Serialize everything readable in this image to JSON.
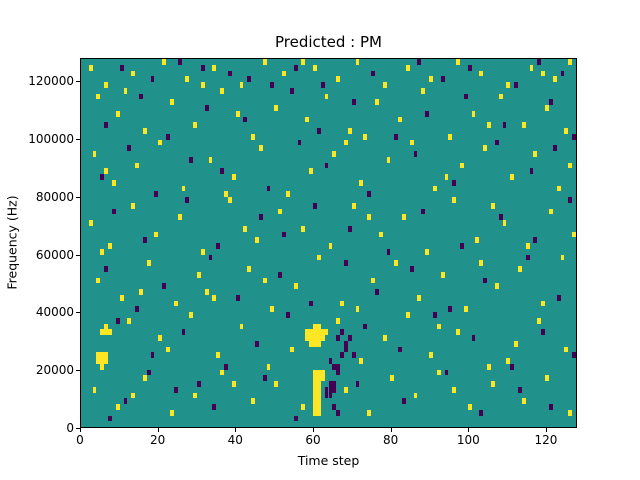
{
  "chart_data": {
    "type": "heatmap",
    "title": "Predicted : PM",
    "xlabel": "Time step",
    "ylabel": "Frequency (Hz)",
    "xlim": [
      0,
      128
    ],
    "ylim": [
      0,
      128000
    ],
    "x_ticks": [
      0,
      20,
      40,
      60,
      80,
      100,
      120
    ],
    "y_ticks": [
      0,
      20000,
      40000,
      60000,
      80000,
      100000,
      120000
    ],
    "grid": false,
    "legend": "none",
    "x_bins": 128,
    "y_bins": 64,
    "cell_height_hz": 2000,
    "colors": {
      "background_value": "#21918c",
      "high_value": "#fde725",
      "low_value": "#440154",
      "figure_background": "#ffffff",
      "axis_color": "#000000"
    },
    "yellow_cells": [
      [
        2,
        62
      ],
      [
        6,
        59
      ],
      [
        13,
        61
      ],
      [
        21,
        63
      ],
      [
        27,
        60
      ],
      [
        34,
        62
      ],
      [
        41,
        59
      ],
      [
        47,
        63
      ],
      [
        52,
        61
      ],
      [
        57,
        63
      ],
      [
        60,
        62
      ],
      [
        66,
        60
      ],
      [
        71,
        63
      ],
      [
        78,
        59
      ],
      [
        84,
        62
      ],
      [
        90,
        60
      ],
      [
        97,
        63
      ],
      [
        103,
        61
      ],
      [
        110,
        59
      ],
      [
        116,
        62
      ],
      [
        119,
        61
      ],
      [
        122,
        60
      ],
      [
        126,
        63
      ],
      [
        31,
        59
      ],
      [
        4,
        57
      ],
      [
        9,
        54
      ],
      [
        11,
        58
      ],
      [
        16,
        51
      ],
      [
        23,
        56
      ],
      [
        29,
        52
      ],
      [
        36,
        58
      ],
      [
        40,
        54
      ],
      [
        44,
        50
      ],
      [
        50,
        55
      ],
      [
        58,
        53
      ],
      [
        63,
        57
      ],
      [
        69,
        51
      ],
      [
        73,
        50
      ],
      [
        76,
        56
      ],
      [
        82,
        53
      ],
      [
        88,
        58
      ],
      [
        95,
        50
      ],
      [
        101,
        54
      ],
      [
        105,
        52
      ],
      [
        108,
        57
      ],
      [
        114,
        52
      ],
      [
        120,
        55
      ],
      [
        125,
        51
      ],
      [
        3,
        47
      ],
      [
        6,
        44
      ],
      [
        8,
        42
      ],
      [
        14,
        45
      ],
      [
        20,
        49
      ],
      [
        26,
        41
      ],
      [
        33,
        46
      ],
      [
        37,
        40
      ],
      [
        39,
        43
      ],
      [
        46,
        48
      ],
      [
        53,
        40
      ],
      [
        59,
        44
      ],
      [
        65,
        47
      ],
      [
        68,
        49
      ],
      [
        72,
        42
      ],
      [
        79,
        46
      ],
      [
        85,
        49
      ],
      [
        91,
        41
      ],
      [
        94,
        43
      ],
      [
        98,
        45
      ],
      [
        104,
        48
      ],
      [
        111,
        43
      ],
      [
        117,
        47
      ],
      [
        123,
        41
      ],
      [
        126,
        45
      ],
      [
        2,
        35
      ],
      [
        5,
        30
      ],
      [
        7,
        31
      ],
      [
        13,
        38
      ],
      [
        19,
        33
      ],
      [
        25,
        36
      ],
      [
        31,
        30
      ],
      [
        38,
        39
      ],
      [
        42,
        34
      ],
      [
        45,
        32
      ],
      [
        51,
        37
      ],
      [
        57,
        34
      ],
      [
        64,
        31
      ],
      [
        70,
        38
      ],
      [
        74,
        36
      ],
      [
        77,
        33
      ],
      [
        83,
        36
      ],
      [
        89,
        30
      ],
      [
        96,
        39
      ],
      [
        102,
        32
      ],
      [
        106,
        38
      ],
      [
        109,
        35
      ],
      [
        115,
        31
      ],
      [
        121,
        37
      ],
      [
        127,
        33
      ],
      [
        4,
        25
      ],
      [
        10,
        22
      ],
      [
        15,
        23
      ],
      [
        17,
        28
      ],
      [
        24,
        21
      ],
      [
        30,
        26
      ],
      [
        32,
        23
      ],
      [
        34,
        22
      ],
      [
        43,
        27
      ],
      [
        47,
        25
      ],
      [
        49,
        20
      ],
      [
        55,
        24
      ],
      [
        61,
        29
      ],
      [
        67,
        21
      ],
      [
        71,
        20
      ],
      [
        75,
        25
      ],
      [
        81,
        28
      ],
      [
        87,
        22
      ],
      [
        93,
        26
      ],
      [
        99,
        20
      ],
      [
        103,
        28
      ],
      [
        107,
        24
      ],
      [
        113,
        27
      ],
      [
        119,
        21
      ],
      [
        124,
        29
      ],
      [
        4,
        11
      ],
      [
        4,
        12
      ],
      [
        5,
        10
      ],
      [
        5,
        11
      ],
      [
        5,
        12
      ],
      [
        6,
        11
      ],
      [
        6,
        12
      ],
      [
        5,
        16
      ],
      [
        6,
        16
      ],
      [
        6,
        17
      ],
      [
        7,
        16
      ],
      [
        58,
        15
      ],
      [
        58,
        16
      ],
      [
        59,
        14
      ],
      [
        59,
        15
      ],
      [
        59,
        16
      ],
      [
        60,
        14
      ],
      [
        60,
        15
      ],
      [
        60,
        16
      ],
      [
        60,
        17
      ],
      [
        61,
        14
      ],
      [
        61,
        15
      ],
      [
        61,
        16
      ],
      [
        61,
        17
      ],
      [
        62,
        15
      ],
      [
        62,
        16
      ],
      [
        63,
        16
      ],
      [
        12,
        18
      ],
      [
        20,
        15
      ],
      [
        22,
        13
      ],
      [
        28,
        19
      ],
      [
        35,
        12
      ],
      [
        41,
        17
      ],
      [
        48,
        10
      ],
      [
        54,
        13
      ],
      [
        66,
        18
      ],
      [
        72,
        11
      ],
      [
        78,
        15
      ],
      [
        84,
        19
      ],
      [
        90,
        12
      ],
      [
        92,
        17
      ],
      [
        97,
        16
      ],
      [
        105,
        10
      ],
      [
        110,
        11
      ],
      [
        112,
        14
      ],
      [
        118,
        18
      ],
      [
        125,
        13
      ],
      [
        60,
        2
      ],
      [
        60,
        3
      ],
      [
        60,
        4
      ],
      [
        60,
        5
      ],
      [
        60,
        6
      ],
      [
        60,
        7
      ],
      [
        60,
        8
      ],
      [
        60,
        9
      ],
      [
        61,
        2
      ],
      [
        61,
        3
      ],
      [
        61,
        4
      ],
      [
        61,
        5
      ],
      [
        61,
        6
      ],
      [
        61,
        7
      ],
      [
        61,
        8
      ],
      [
        61,
        9
      ],
      [
        62,
        8
      ],
      [
        62,
        9
      ],
      [
        3,
        6
      ],
      [
        9,
        3
      ],
      [
        13,
        5
      ],
      [
        16,
        8
      ],
      [
        23,
        2
      ],
      [
        29,
        5
      ],
      [
        36,
        9
      ],
      [
        39,
        7
      ],
      [
        44,
        4
      ],
      [
        50,
        7
      ],
      [
        57,
        3
      ],
      [
        68,
        6
      ],
      [
        74,
        2
      ],
      [
        80,
        8
      ],
      [
        86,
        5
      ],
      [
        92,
        9
      ],
      [
        96,
        6
      ],
      [
        100,
        3
      ],
      [
        106,
        7
      ],
      [
        114,
        4
      ],
      [
        120,
        8
      ],
      [
        126,
        2
      ]
    ],
    "purple_cells": [
      [
        63,
        5
      ],
      [
        63,
        6
      ],
      [
        64,
        5
      ],
      [
        64,
        6
      ],
      [
        64,
        7
      ],
      [
        65,
        6
      ],
      [
        65,
        7
      ],
      [
        65,
        10
      ],
      [
        66,
        9
      ],
      [
        66,
        10
      ],
      [
        67,
        12
      ],
      [
        68,
        13
      ],
      [
        68,
        14
      ],
      [
        69,
        15
      ],
      [
        70,
        12
      ],
      [
        66,
        15
      ],
      [
        67,
        16
      ],
      [
        10,
        62
      ],
      [
        18,
        60
      ],
      [
        25,
        63
      ],
      [
        31,
        62
      ],
      [
        38,
        61
      ],
      [
        43,
        60
      ],
      [
        49,
        59
      ],
      [
        55,
        62
      ],
      [
        62,
        59
      ],
      [
        75,
        61
      ],
      [
        87,
        63
      ],
      [
        93,
        60
      ],
      [
        100,
        62
      ],
      [
        112,
        59
      ],
      [
        118,
        63
      ],
      [
        124,
        61
      ],
      [
        6,
        52
      ],
      [
        15,
        57
      ],
      [
        22,
        50
      ],
      [
        32,
        55
      ],
      [
        42,
        53
      ],
      [
        54,
        58
      ],
      [
        61,
        51
      ],
      [
        70,
        56
      ],
      [
        81,
        50
      ],
      [
        89,
        54
      ],
      [
        99,
        57
      ],
      [
        109,
        52
      ],
      [
        121,
        56
      ],
      [
        127,
        50
      ],
      [
        5,
        43
      ],
      [
        12,
        48
      ],
      [
        19,
        40
      ],
      [
        28,
        46
      ],
      [
        36,
        44
      ],
      [
        48,
        41
      ],
      [
        56,
        49
      ],
      [
        63,
        45
      ],
      [
        74,
        40
      ],
      [
        86,
        47
      ],
      [
        96,
        42
      ],
      [
        107,
        49
      ],
      [
        116,
        44
      ],
      [
        122,
        48
      ],
      [
        8,
        37
      ],
      [
        16,
        32
      ],
      [
        27,
        39
      ],
      [
        35,
        31
      ],
      [
        46,
        36
      ],
      [
        52,
        33
      ],
      [
        60,
        38
      ],
      [
        69,
        34
      ],
      [
        79,
        30
      ],
      [
        88,
        37
      ],
      [
        98,
        31
      ],
      [
        108,
        36
      ],
      [
        117,
        32
      ],
      [
        126,
        39
      ],
      [
        6,
        27
      ],
      [
        14,
        20
      ],
      [
        21,
        24
      ],
      [
        33,
        29
      ],
      [
        40,
        22
      ],
      [
        51,
        26
      ],
      [
        59,
        21
      ],
      [
        68,
        28
      ],
      [
        76,
        23
      ],
      [
        85,
        27
      ],
      [
        95,
        20
      ],
      [
        104,
        25
      ],
      [
        115,
        29
      ],
      [
        123,
        22
      ],
      [
        9,
        18
      ],
      [
        18,
        12
      ],
      [
        26,
        16
      ],
      [
        37,
        10
      ],
      [
        45,
        14
      ],
      [
        53,
        19
      ],
      [
        64,
        11
      ],
      [
        73,
        17
      ],
      [
        82,
        13
      ],
      [
        91,
        19
      ],
      [
        101,
        15
      ],
      [
        111,
        10
      ],
      [
        119,
        16
      ],
      [
        127,
        12
      ],
      [
        7,
        1
      ],
      [
        11,
        4
      ],
      [
        17,
        9
      ],
      [
        24,
        6
      ],
      [
        30,
        7
      ],
      [
        34,
        3
      ],
      [
        47,
        8
      ],
      [
        55,
        1
      ],
      [
        65,
        3
      ],
      [
        66,
        2
      ],
      [
        71,
        7
      ],
      [
        83,
        4
      ],
      [
        94,
        9
      ],
      [
        103,
        2
      ],
      [
        113,
        6
      ],
      [
        121,
        3
      ]
    ]
  }
}
